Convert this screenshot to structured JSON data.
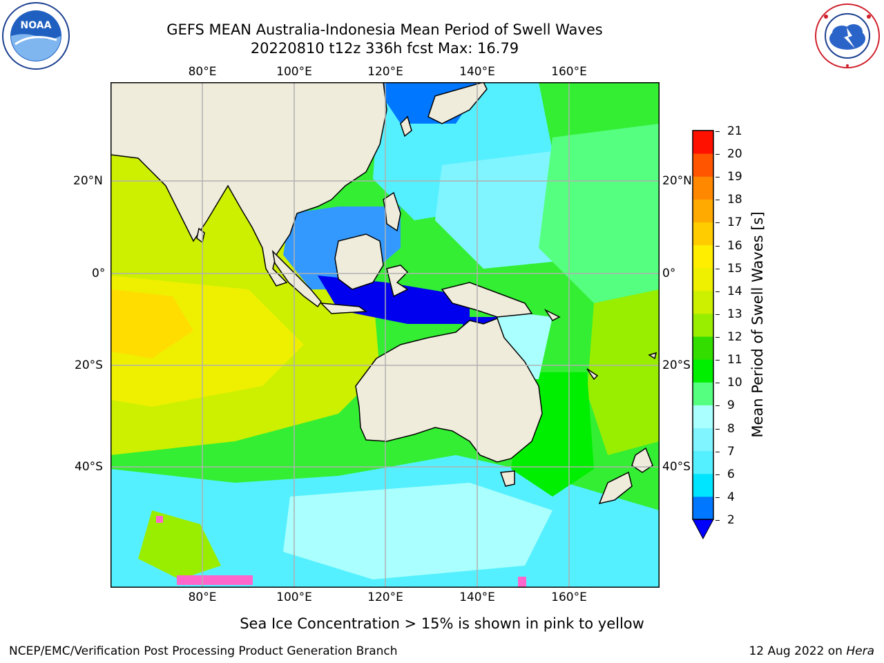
{
  "header": {
    "title_line1": "GEFS MEAN Australia-Indonesia Mean Period of Swell Waves",
    "title_line2": "20220810 t12z 336h fcst   Max: 16.79"
  },
  "logos": {
    "left": {
      "name": "noaa-logo",
      "text": "NOAA",
      "ring_text": "NATIONAL OCEANIC AND ATMOSPHERIC ADMINISTRATION · U.S. DEPARTMENT OF COMMERCE"
    },
    "right": {
      "name": "nws-logo",
      "ring_text": "NATIONAL WEATHER SERVICE"
    }
  },
  "map": {
    "lon_labels": [
      "80°E",
      "100°E",
      "120°E",
      "140°E",
      "160°E"
    ],
    "lat_labels_left": [
      "20°N",
      "0°",
      "20°S",
      "40°S"
    ],
    "lat_labels_right": [
      "20°N",
      "0°",
      "20°S",
      "40°S"
    ],
    "land_color": "#efecdc",
    "grid_color": "#b0b0b0"
  },
  "colorbar": {
    "label": "Mean Period of Swell Waves [s]",
    "ticks": [
      "2",
      "4",
      "6",
      "7",
      "8",
      "9",
      "10",
      "11",
      "12",
      "13",
      "14",
      "15",
      "16",
      "17",
      "18",
      "19",
      "20",
      "21"
    ],
    "colors": [
      "#0077ff",
      "#00e5ff",
      "#55f0ff",
      "#80f5ff",
      "#aaffff",
      "#55ff80",
      "#00ee00",
      "#33dd00",
      "#99ee00",
      "#ccf000",
      "#eef000",
      "#ffee00",
      "#ffcc00",
      "#ffaa00",
      "#ff8800",
      "#ff5500",
      "#ff1100"
    ],
    "under_color": "#0000ff"
  },
  "notes": {
    "sea_ice": "Sea Ice Concentration > 15% is shown in pink to yellow"
  },
  "footer": {
    "left": "NCEP/EMC/Verification Post Processing Product Generation Branch",
    "right_prefix": "12 Aug 2022 on ",
    "right_machine": "Hera"
  }
}
